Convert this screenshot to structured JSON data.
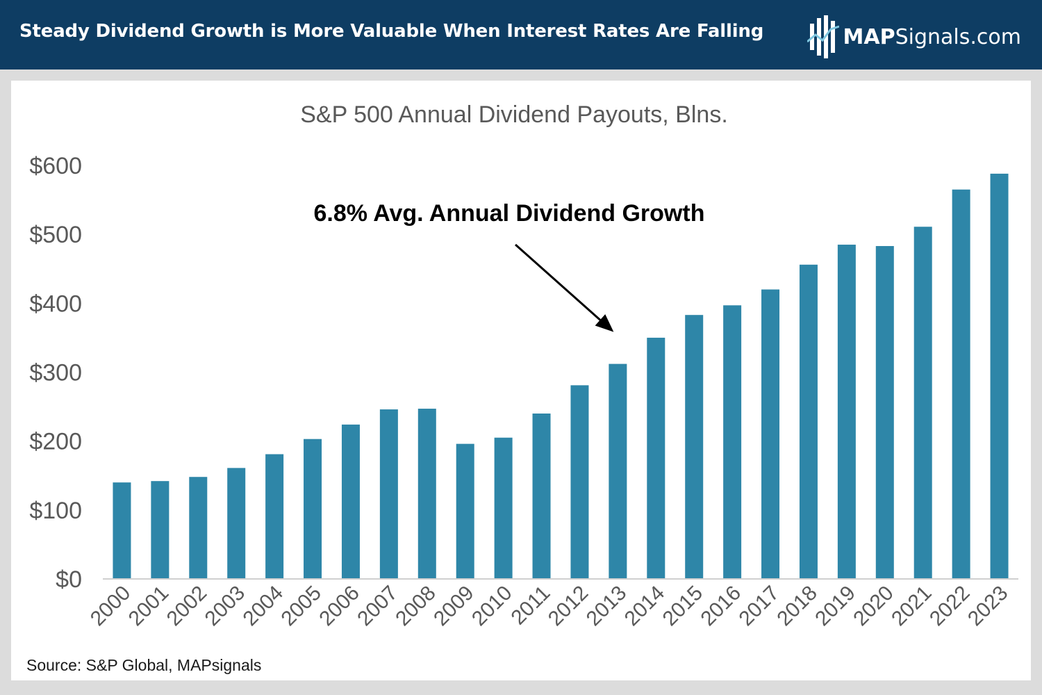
{
  "header": {
    "title": "Steady Dividend Growth is More Valuable When Interest Rates Are Falling",
    "brand_bold": "MAP",
    "brand_rest": "Signals.com"
  },
  "source": "Source: S&P Global, MAPsignals",
  "chart_data": {
    "type": "bar",
    "title": "S&P 500 Annual Dividend Payouts, Blns.",
    "xlabel": "",
    "ylabel": "",
    "ylim": [
      0,
      600
    ],
    "yticks": [
      0,
      100,
      200,
      300,
      400,
      500,
      600
    ],
    "ytick_labels": [
      "$0",
      "$100",
      "$200",
      "$300",
      "$400",
      "$500",
      "$600"
    ],
    "categories": [
      "2000",
      "2001",
      "2002",
      "2003",
      "2004",
      "2005",
      "2006",
      "2007",
      "2008",
      "2009",
      "2010",
      "2011",
      "2012",
      "2013",
      "2014",
      "2015",
      "2016",
      "2017",
      "2018",
      "2019",
      "2020",
      "2021",
      "2022",
      "2023"
    ],
    "values": [
      140,
      142,
      148,
      161,
      181,
      203,
      224,
      246,
      247,
      196,
      205,
      240,
      281,
      312,
      350,
      383,
      397,
      420,
      456,
      485,
      483,
      511,
      565,
      588
    ],
    "bar_color": "#2e86a8",
    "annotation": {
      "text": "6.8% Avg. Annual Dividend Growth",
      "arrow_target": "2013"
    }
  }
}
